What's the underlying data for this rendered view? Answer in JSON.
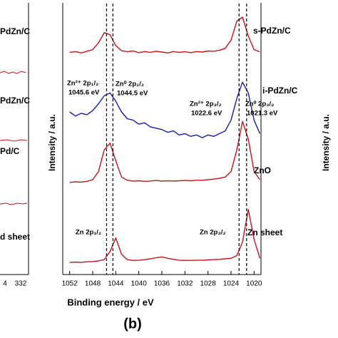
{
  "chart_data": {
    "type": "line",
    "xlabel": "Binding energy / eV",
    "ylabel": "Intensity / a.u.",
    "panel_label": "(b)",
    "xlim": [
      1053.2,
      1018.8
    ],
    "ylim": [
      0,
      100
    ],
    "xticks": [
      1052,
      1048,
      1044,
      1040,
      1036,
      1032,
      1028,
      1024,
      1020
    ],
    "x": [
      1052,
      1051,
      1050,
      1049,
      1048,
      1047,
      1046,
      1045,
      1044,
      1043,
      1042,
      1041,
      1040,
      1039,
      1038,
      1037,
      1036,
      1035,
      1034,
      1033,
      1032,
      1031,
      1030,
      1029,
      1028,
      1027,
      1026,
      1025,
      1024,
      1023,
      1022,
      1021,
      1020,
      1019
    ],
    "series": [
      {
        "color": "#c0151b",
        "values": [
          82.0,
          82.3,
          81.8,
          82.4,
          83.0,
          85.5,
          89.3,
          88.5,
          84.5,
          82.6,
          82.2,
          82.5,
          81.9,
          82.3,
          82.0,
          82.4,
          82.1,
          81.8,
          82.3,
          82.0,
          82.2,
          81.9,
          82.3,
          82.1,
          82.5,
          82.4,
          82.8,
          83.5,
          86.5,
          93.5,
          95.0,
          88.0,
          83.0,
          82.2
        ]
      },
      {
        "color": "#1a1aa8",
        "values": [
          60,
          58.5,
          59.5,
          59,
          60.5,
          63,
          66,
          67,
          64,
          60,
          57.5,
          57,
          55.5,
          56,
          54.5,
          54,
          53.5,
          52.5,
          53,
          51.5,
          52,
          51,
          51.5,
          50.5,
          51.5,
          51,
          52,
          53,
          57,
          65,
          71,
          67,
          57,
          52
        ]
      },
      {
        "color": "#c0151b",
        "values": [
          34,
          34.2,
          34.1,
          34.4,
          35,
          38,
          46,
          48.5,
          42,
          36,
          34.8,
          34.5,
          34.6,
          34.4,
          34.5,
          34.7,
          34.5,
          34.6,
          34.5,
          34.6,
          34.7,
          34.6,
          34.8,
          34.8,
          35,
          35.2,
          35.5,
          36,
          38,
          46,
          56.5,
          50,
          38,
          35
        ]
      },
      {
        "color": "#c0151b",
        "values": [
          4.5,
          4.6,
          4.5,
          4.7,
          4.8,
          5,
          5.5,
          8.5,
          13.5,
          7.5,
          5.5,
          5.2,
          5.3,
          5.5,
          5.8,
          6.2,
          6.5,
          6,
          5.6,
          5.3,
          5.2,
          5.2,
          5.3,
          5.3,
          5.4,
          5.5,
          5.6,
          5.8,
          6,
          7,
          12,
          24,
          13,
          6
        ]
      }
    ],
    "reference_lines": [
      1045.6,
      1044.5,
      1022.6,
      1021.3
    ],
    "annotations": [
      "s-PdZn/C",
      "i-PdZn/C",
      "ZnO",
      "Zn sheet",
      "Zn 2p₁/₂",
      "Zn 2p₃/₂",
      "Zn²⁺ 2p₁/₂",
      "1045.6 eV",
      "Zn⁰ 2p₁/₂",
      "1044.5 eV",
      "Zn²⁺ 2p₃/₂",
      "1022.6 eV",
      "Zn⁰ 2p₃/₂",
      "1021.3 eV"
    ]
  },
  "cropped": {
    "left_labels": [
      "PdZn/C",
      "PdZn/C",
      "Pd/C",
      "d sheet"
    ],
    "left_ticks": [
      "4",
      "332"
    ],
    "right_ylabel": "Intensity / a.u."
  }
}
